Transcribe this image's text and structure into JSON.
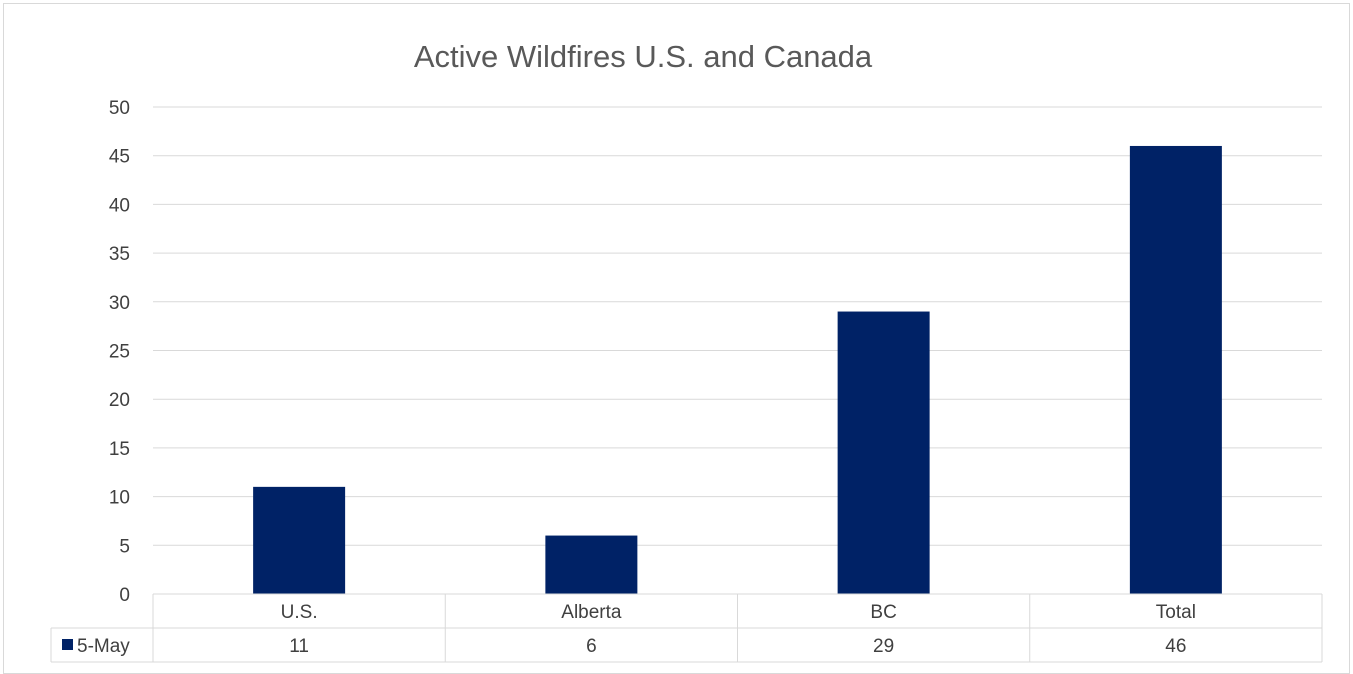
{
  "chart_data": {
    "type": "bar",
    "title": "Active Wildfires U.S. and Canada",
    "categories": [
      "U.S.",
      "Alberta",
      "BC",
      "Total"
    ],
    "series": [
      {
        "name": "5-May",
        "values": [
          11,
          6,
          29,
          46
        ],
        "color": "#002266"
      }
    ],
    "ylim": [
      0,
      50
    ],
    "yticks": [
      0,
      5,
      10,
      15,
      20,
      25,
      30,
      35,
      40,
      45,
      50
    ],
    "grid": true,
    "legend": "data-table",
    "data_table": true
  }
}
